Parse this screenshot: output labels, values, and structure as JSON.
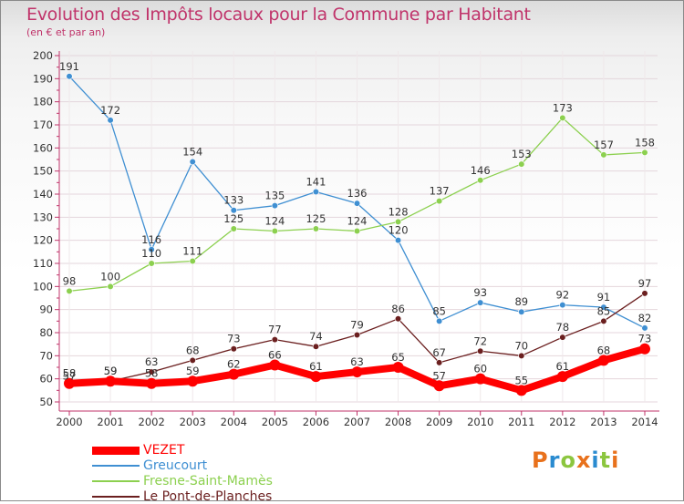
{
  "header": {
    "title": "Evolution des Impôts locaux pour la Commune par Habitant",
    "subtitle": "(en € et par an)"
  },
  "logo": {
    "text": "Proxiti",
    "colors": [
      "#e8711c",
      "#2a8bd0",
      "#8cc63f",
      "#e8711c",
      "#2a8bd0",
      "#8cc63f",
      "#e8711c"
    ]
  },
  "colors": {
    "title": "#c0336a",
    "axis": "#c0336a",
    "grid": "#e4d6dc"
  },
  "chart_data": {
    "type": "line",
    "title": "Evolution des Impôts locaux pour la Commune par Habitant",
    "subtitle": "(en € et par an)",
    "xlabel": "",
    "ylabel": "",
    "x": [
      "2000",
      "2001",
      "2002",
      "2003",
      "2004",
      "2005",
      "2006",
      "2007",
      "2008",
      "2009",
      "2010",
      "2011",
      "2012",
      "2013",
      "2014"
    ],
    "ylim": [
      50,
      200
    ],
    "yticks": [
      50,
      60,
      70,
      80,
      90,
      100,
      110,
      120,
      130,
      140,
      150,
      160,
      170,
      180,
      190,
      200
    ],
    "grid": true,
    "legend_position": "bottom-left",
    "series": [
      {
        "name": "VEZET",
        "color": "#ff0000",
        "values": [
          58,
          59,
          58,
          59,
          62,
          66,
          61,
          63,
          65,
          57,
          60,
          55,
          61,
          68,
          73
        ]
      },
      {
        "name": "Greucourt",
        "color": "#3f8fd2",
        "values": [
          191,
          172,
          116,
          154,
          133,
          135,
          141,
          136,
          120,
          85,
          93,
          89,
          92,
          91,
          82
        ]
      },
      {
        "name": "Fresne-Saint-Mamès",
        "color": "#8cd04f",
        "values": [
          98,
          100,
          110,
          111,
          125,
          124,
          125,
          124,
          128,
          137,
          146,
          153,
          173,
          157,
          158
        ]
      },
      {
        "name": "Le Pont-de-Planches",
        "color": "#6b1f1f",
        "values": [
          57,
          59,
          63,
          68,
          73,
          77,
          74,
          79,
          86,
          67,
          72,
          70,
          78,
          85,
          97
        ]
      }
    ]
  }
}
